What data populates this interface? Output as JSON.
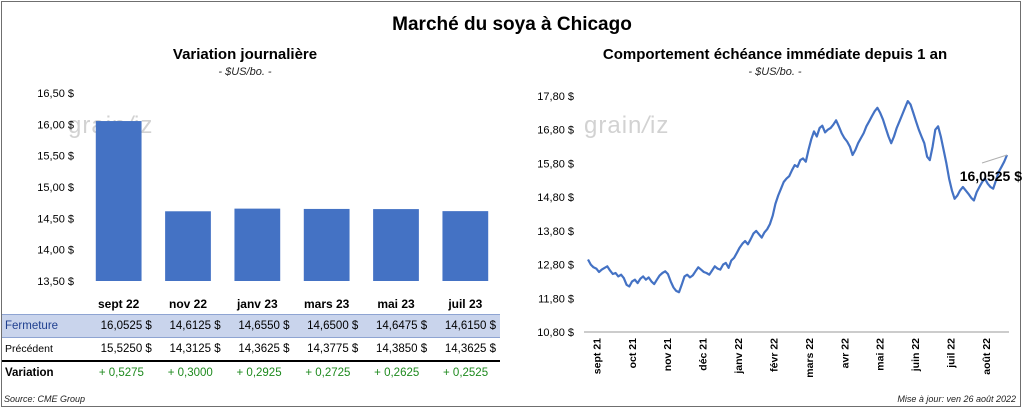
{
  "title": "Marché du soya à Chicago",
  "watermark": "grainwiz",
  "colors": {
    "bar": "#4472c4",
    "line": "#4472c4",
    "positive": "#1e8a1e",
    "highlight_row": "#c9d4ec"
  },
  "chart_data": [
    {
      "type": "bar",
      "title": "Variation journalière",
      "unit": "- $US/bo. -",
      "categories": [
        "sept 22",
        "nov 22",
        "janv 23",
        "mars 23",
        "mai 23",
        "juil 23"
      ],
      "values": [
        16.0525,
        14.6125,
        14.655,
        14.65,
        14.6475,
        14.615
      ],
      "ylim": [
        13.5,
        16.5
      ],
      "yticks": [
        "13,50 $",
        "14,00 $",
        "14,50 $",
        "15,00 $",
        "15,50 $",
        "16,00 $",
        "16,50 $"
      ],
      "grid": false
    },
    {
      "type": "line",
      "title": "Comportement  échéance immédiate depuis 1 an",
      "unit": "- $US/bo. -",
      "ylim": [
        10.8,
        17.8
      ],
      "yticks": [
        "10,80 $",
        "11,80 $",
        "12,80 $",
        "13,80 $",
        "14,80 $",
        "15,80 $",
        "16,80 $",
        "17,80 $"
      ],
      "xticks": [
        "sept 21",
        "oct 21",
        "nov 21",
        "déc 21",
        "janv 22",
        "févr 22",
        "mars 22",
        "avr 22",
        "mai 22",
        "juin 22",
        "juil 22",
        "août 22"
      ],
      "last_value_label": "16,0525 $",
      "series": [
        {
          "values": [
            12.95,
            12.8,
            12.72,
            12.68,
            12.58,
            12.65,
            12.7,
            12.75,
            12.62,
            12.52,
            12.55,
            12.45,
            12.5,
            12.4,
            12.2,
            12.15,
            12.3,
            12.35,
            12.25,
            12.38,
            12.45,
            12.35,
            12.42,
            12.3,
            12.22,
            12.35,
            12.48,
            12.55,
            12.6,
            12.52,
            12.3,
            12.12,
            12.02,
            11.98,
            12.2,
            12.45,
            12.5,
            12.42,
            12.48,
            12.6,
            12.72,
            12.65,
            12.58,
            12.55,
            12.5,
            12.62,
            12.75,
            12.68,
            12.65,
            12.8,
            12.85,
            12.7,
            12.92,
            13.0,
            13.15,
            13.3,
            13.42,
            13.5,
            13.4,
            13.55,
            13.72,
            13.8,
            13.7,
            13.6,
            13.75,
            13.85,
            14.0,
            14.25,
            14.6,
            14.85,
            15.05,
            15.25,
            15.35,
            15.42,
            15.6,
            15.75,
            15.7,
            15.9,
            15.95,
            15.85,
            16.2,
            16.52,
            16.75,
            16.6,
            16.85,
            16.92,
            16.72,
            16.8,
            16.85,
            16.95,
            17.08,
            16.9,
            16.7,
            16.55,
            16.45,
            16.3,
            16.05,
            16.2,
            16.4,
            16.55,
            16.7,
            16.9,
            17.05,
            17.2,
            17.35,
            17.45,
            17.3,
            17.1,
            16.85,
            16.6,
            16.4,
            16.6,
            16.85,
            17.05,
            17.25,
            17.45,
            17.65,
            17.55,
            17.3,
            17.05,
            16.8,
            16.6,
            16.4,
            16.0,
            15.9,
            16.3,
            16.8,
            16.9,
            16.6,
            16.2,
            15.8,
            15.35,
            15.0,
            14.75,
            14.85,
            15.0,
            15.1,
            15.0,
            14.9,
            14.78,
            14.7,
            14.95,
            15.1,
            15.25,
            15.35,
            15.2,
            15.1,
            15.05,
            15.3,
            15.55,
            15.7,
            15.85,
            16.05
          ]
        }
      ]
    }
  ],
  "table": {
    "rows": [
      {
        "label": "Fermeture",
        "values": [
          "16,0525  $",
          "14,6125  $",
          "14,6550  $",
          "14,6500  $",
          "14,6475  $",
          "14,6150  $"
        ]
      },
      {
        "label": "Précédent",
        "values": [
          "15,5250  $",
          "14,3125  $",
          "14,3625  $",
          "14,3775  $",
          "14,3850  $",
          "14,3625  $"
        ]
      },
      {
        "label": "Variation",
        "values": [
          "+ 0,5275",
          "+ 0,3000",
          "+ 0,2925",
          "+ 0,2725",
          "+ 0,2625",
          "+ 0,2525"
        ]
      }
    ]
  },
  "footer": {
    "source": "Source: CME Group",
    "updated": "Mise à jour: ven 26 août 2022"
  }
}
